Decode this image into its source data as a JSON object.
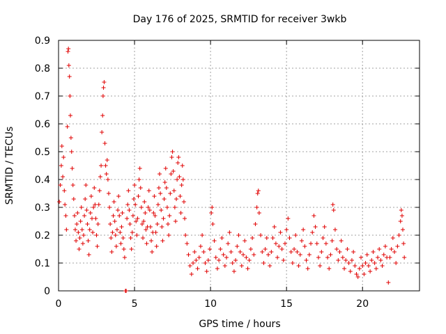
{
  "chart_data": {
    "type": "scatter",
    "title": "Day 176 of 2025, SRMTID for receiver 3wkb",
    "xlabel": "GPS time / hours",
    "ylabel": "SRMTID / TECUs",
    "xlim": [
      0,
      23.75
    ],
    "ylim": [
      0,
      0.9
    ],
    "x_ticks": [
      0,
      5,
      10,
      15,
      20
    ],
    "x_tick_labels": [
      "0",
      "5",
      "10",
      "15",
      "20"
    ],
    "y_ticks": [
      0,
      0.1,
      0.2,
      0.3,
      0.4,
      0.5,
      0.6,
      0.7,
      0.8,
      0.9
    ],
    "y_tick_labels": [
      "0",
      "0.1",
      "0.2",
      "0.3",
      "0.4",
      "0.5",
      "0.6",
      "0.7",
      "0.8",
      "0.9"
    ],
    "grid": true,
    "marker": "+",
    "color": "#e00000",
    "series": [
      {
        "name": "SRMTID",
        "points": [
          [
            0.05,
            0.32
          ],
          [
            0.12,
            0.38
          ],
          [
            0.18,
            0.45
          ],
          [
            0.22,
            0.52
          ],
          [
            0.28,
            0.41
          ],
          [
            0.33,
            0.48
          ],
          [
            0.38,
            0.36
          ],
          [
            0.42,
            0.31
          ],
          [
            0.48,
            0.27
          ],
          [
            0.52,
            0.22
          ],
          [
            0.58,
            0.59
          ],
          [
            0.62,
            0.86
          ],
          [
            0.65,
            0.87
          ],
          [
            0.68,
            0.81
          ],
          [
            0.72,
            0.77
          ],
          [
            0.75,
            0.7
          ],
          [
            0.78,
            0.63
          ],
          [
            0.82,
            0.55
          ],
          [
            0.86,
            0.5
          ],
          [
            0.9,
            0.44
          ],
          [
            0.95,
            0.38
          ],
          [
            1.0,
            0.33
          ],
          [
            1.05,
            0.27
          ],
          [
            1.1,
            0.22
          ],
          [
            1.15,
            0.18
          ],
          [
            1.2,
            0.24
          ],
          [
            1.25,
            0.28
          ],
          [
            1.3,
            0.21
          ],
          [
            1.35,
            0.15
          ],
          [
            1.4,
            0.19
          ],
          [
            1.45,
            0.25
          ],
          [
            1.5,
            0.3
          ],
          [
            1.55,
            0.22
          ],
          [
            1.6,
            0.17
          ],
          [
            1.65,
            0.2
          ],
          [
            1.7,
            0.27
          ],
          [
            1.75,
            0.33
          ],
          [
            1.8,
            0.38
          ],
          [
            1.85,
            0.29
          ],
          [
            1.9,
            0.24
          ],
          [
            1.95,
            0.18
          ],
          [
            2.0,
            0.13
          ],
          [
            2.05,
            0.22
          ],
          [
            2.1,
            0.28
          ],
          [
            2.15,
            0.34
          ],
          [
            2.2,
            0.26
          ],
          [
            2.25,
            0.21
          ],
          [
            2.3,
            0.3
          ],
          [
            2.35,
            0.37
          ],
          [
            2.4,
            0.31
          ],
          [
            2.45,
            0.26
          ],
          [
            2.5,
            0.2
          ],
          [
            2.55,
            0.16
          ],
          [
            2.6,
            0.24
          ],
          [
            2.65,
            0.31
          ],
          [
            2.7,
            0.36
          ],
          [
            2.75,
            0.41
          ],
          [
            2.8,
            0.45
          ],
          [
            2.85,
            0.57
          ],
          [
            2.9,
            0.63
          ],
          [
            2.93,
            0.7
          ],
          [
            2.96,
            0.73
          ],
          [
            3.0,
            0.75
          ],
          [
            3.05,
            0.53
          ],
          [
            3.1,
            0.45
          ],
          [
            3.15,
            0.42
          ],
          [
            3.2,
            0.47
          ],
          [
            3.25,
            0.4
          ],
          [
            3.3,
            0.35
          ],
          [
            3.35,
            0.3
          ],
          [
            3.4,
            0.24
          ],
          [
            3.45,
            0.19
          ],
          [
            3.5,
            0.14
          ],
          [
            3.55,
            0.21
          ],
          [
            3.6,
            0.27
          ],
          [
            3.65,
            0.32
          ],
          [
            3.7,
            0.25
          ],
          [
            3.75,
            0.2
          ],
          [
            3.8,
            0.16
          ],
          [
            3.85,
            0.22
          ],
          [
            3.9,
            0.29
          ],
          [
            3.95,
            0.34
          ],
          [
            4.0,
            0.27
          ],
          [
            4.05,
            0.21
          ],
          [
            4.1,
            0.17
          ],
          [
            4.15,
            0.23
          ],
          [
            4.2,
            0.28
          ],
          [
            4.25,
            0.19
          ],
          [
            4.3,
            0.15
          ],
          [
            4.35,
            0.12
          ],
          [
            4.4,
            0.0
          ],
          [
            4.45,
            0.0
          ],
          [
            4.5,
            0.26
          ],
          [
            4.55,
            0.31
          ],
          [
            4.6,
            0.36
          ],
          [
            4.65,
            0.29
          ],
          [
            4.7,
            0.24
          ],
          [
            4.75,
            0.19
          ],
          [
            4.8,
            0.15
          ],
          [
            4.85,
            0.21
          ],
          [
            4.9,
            0.27
          ],
          [
            4.95,
            0.33
          ],
          [
            5.0,
            0.38
          ],
          [
            5.05,
            0.31
          ],
          [
            5.1,
            0.25
          ],
          [
            5.15,
            0.2
          ],
          [
            5.2,
            0.26
          ],
          [
            5.25,
            0.34
          ],
          [
            5.3,
            0.4
          ],
          [
            5.35,
            0.44
          ],
          [
            5.4,
            0.37
          ],
          [
            5.45,
            0.3
          ],
          [
            5.5,
            0.24
          ],
          [
            5.55,
            0.19
          ],
          [
            5.6,
            0.25
          ],
          [
            5.65,
            0.32
          ],
          [
            5.7,
            0.28
          ],
          [
            5.75,
            0.22
          ],
          [
            5.8,
            0.17
          ],
          [
            5.85,
            0.23
          ],
          [
            5.9,
            0.3
          ],
          [
            5.95,
            0.36
          ],
          [
            6.0,
            0.29
          ],
          [
            6.05,
            0.23
          ],
          [
            6.1,
            0.18
          ],
          [
            6.15,
            0.14
          ],
          [
            6.2,
            0.21
          ],
          [
            6.25,
            0.28
          ],
          [
            6.3,
            0.34
          ],
          [
            6.35,
            0.27
          ],
          [
            6.4,
            0.21
          ],
          [
            6.45,
            0.16
          ],
          [
            6.5,
            0.24
          ],
          [
            6.55,
            0.31
          ],
          [
            6.6,
            0.37
          ],
          [
            6.65,
            0.42
          ],
          [
            6.7,
            0.35
          ],
          [
            6.75,
            0.29
          ],
          [
            6.8,
            0.23
          ],
          [
            6.85,
            0.18
          ],
          [
            6.9,
            0.26
          ],
          [
            6.95,
            0.33
          ],
          [
            7.0,
            0.39
          ],
          [
            7.05,
            0.44
          ],
          [
            7.1,
            0.37
          ],
          [
            7.15,
            0.3
          ],
          [
            7.2,
            0.24
          ],
          [
            7.25,
            0.2
          ],
          [
            7.3,
            0.27
          ],
          [
            7.35,
            0.35
          ],
          [
            7.4,
            0.42
          ],
          [
            7.45,
            0.48
          ],
          [
            7.5,
            0.5
          ],
          [
            7.55,
            0.43
          ],
          [
            7.6,
            0.36
          ],
          [
            7.65,
            0.3
          ],
          [
            7.7,
            0.25
          ],
          [
            7.75,
            0.33
          ],
          [
            7.8,
            0.4
          ],
          [
            7.85,
            0.46
          ],
          [
            7.9,
            0.48
          ],
          [
            7.95,
            0.41
          ],
          [
            8.0,
            0.34
          ],
          [
            8.05,
            0.28
          ],
          [
            8.1,
            0.38
          ],
          [
            8.15,
            0.45
          ],
          [
            8.2,
            0.4
          ],
          [
            8.25,
            0.32
          ],
          [
            8.3,
            0.26
          ],
          [
            8.35,
            0.2
          ],
          [
            8.45,
            0.17
          ],
          [
            8.55,
            0.13
          ],
          [
            8.65,
            0.09
          ],
          [
            8.75,
            0.06
          ],
          [
            8.85,
            0.1
          ],
          [
            8.95,
            0.14
          ],
          [
            9.05,
            0.11
          ],
          [
            9.15,
            0.08
          ],
          [
            9.25,
            0.12
          ],
          [
            9.35,
            0.16
          ],
          [
            9.45,
            0.2
          ],
          [
            9.55,
            0.14
          ],
          [
            9.65,
            0.1
          ],
          [
            9.75,
            0.07
          ],
          [
            9.85,
            0.11
          ],
          [
            9.95,
            0.15
          ],
          [
            10.05,
            0.28
          ],
          [
            10.1,
            0.3
          ],
          [
            10.15,
            0.24
          ],
          [
            10.25,
            0.18
          ],
          [
            10.35,
            0.12
          ],
          [
            10.45,
            0.08
          ],
          [
            10.55,
            0.11
          ],
          [
            10.65,
            0.15
          ],
          [
            10.75,
            0.19
          ],
          [
            10.85,
            0.13
          ],
          [
            10.95,
            0.09
          ],
          [
            11.05,
            0.12
          ],
          [
            11.15,
            0.17
          ],
          [
            11.25,
            0.21
          ],
          [
            11.35,
            0.14
          ],
          [
            11.45,
            0.1
          ],
          [
            11.55,
            0.07
          ],
          [
            11.65,
            0.11
          ],
          [
            11.75,
            0.16
          ],
          [
            11.85,
            0.2
          ],
          [
            11.95,
            0.14
          ],
          [
            12.05,
            0.09
          ],
          [
            12.15,
            0.13
          ],
          [
            12.25,
            0.18
          ],
          [
            12.35,
            0.12
          ],
          [
            12.45,
            0.08
          ],
          [
            12.55,
            0.11
          ],
          [
            12.65,
            0.15
          ],
          [
            12.75,
            0.19
          ],
          [
            12.85,
            0.13
          ],
          [
            12.95,
            0.24
          ],
          [
            13.05,
            0.3
          ],
          [
            13.1,
            0.35
          ],
          [
            13.15,
            0.36
          ],
          [
            13.2,
            0.28
          ],
          [
            13.3,
            0.2
          ],
          [
            13.4,
            0.14
          ],
          [
            13.5,
            0.1
          ],
          [
            13.6,
            0.15
          ],
          [
            13.7,
            0.19
          ],
          [
            13.8,
            0.13
          ],
          [
            13.9,
            0.09
          ],
          [
            14.0,
            0.14
          ],
          [
            14.1,
            0.19
          ],
          [
            14.2,
            0.23
          ],
          [
            14.3,
            0.17
          ],
          [
            14.4,
            0.12
          ],
          [
            14.5,
            0.16
          ],
          [
            14.6,
            0.21
          ],
          [
            14.7,
            0.15
          ],
          [
            14.8,
            0.11
          ],
          [
            14.9,
            0.17
          ],
          [
            15.0,
            0.22
          ],
          [
            15.1,
            0.26
          ],
          [
            15.2,
            0.19
          ],
          [
            15.3,
            0.14
          ],
          [
            15.4,
            0.1
          ],
          [
            15.5,
            0.15
          ],
          [
            15.6,
            0.2
          ],
          [
            15.7,
            0.14
          ],
          [
            15.8,
            0.09
          ],
          [
            15.9,
            0.13
          ],
          [
            16.0,
            0.18
          ],
          [
            16.1,
            0.22
          ],
          [
            16.2,
            0.16
          ],
          [
            16.3,
            0.11
          ],
          [
            16.4,
            0.08
          ],
          [
            16.5,
            0.13
          ],
          [
            16.6,
            0.17
          ],
          [
            16.7,
            0.21
          ],
          [
            16.8,
            0.27
          ],
          [
            16.9,
            0.23
          ],
          [
            17.0,
            0.17
          ],
          [
            17.1,
            0.12
          ],
          [
            17.2,
            0.09
          ],
          [
            17.3,
            0.14
          ],
          [
            17.4,
            0.19
          ],
          [
            17.5,
            0.23
          ],
          [
            17.6,
            0.17
          ],
          [
            17.7,
            0.12
          ],
          [
            17.8,
            0.08
          ],
          [
            17.9,
            0.13
          ],
          [
            18.0,
            0.18
          ],
          [
            18.05,
            0.31
          ],
          [
            18.1,
            0.29
          ],
          [
            18.2,
            0.22
          ],
          [
            18.3,
            0.15
          ],
          [
            18.4,
            0.11
          ],
          [
            18.5,
            0.14
          ],
          [
            18.6,
            0.18
          ],
          [
            18.7,
            0.12
          ],
          [
            18.8,
            0.08
          ],
          [
            18.9,
            0.11
          ],
          [
            19.0,
            0.15
          ],
          [
            19.1,
            0.1
          ],
          [
            19.2,
            0.07
          ],
          [
            19.3,
            0.11
          ],
          [
            19.4,
            0.14
          ],
          [
            19.5,
            0.09
          ],
          [
            19.6,
            0.06
          ],
          [
            19.7,
            0.05
          ],
          [
            19.8,
            0.08
          ],
          [
            19.9,
            0.12
          ],
          [
            20.0,
            0.09
          ],
          [
            20.1,
            0.06
          ],
          [
            20.2,
            0.1
          ],
          [
            20.3,
            0.13
          ],
          [
            20.4,
            0.09
          ],
          [
            20.5,
            0.07
          ],
          [
            20.6,
            0.11
          ],
          [
            20.7,
            0.14
          ],
          [
            20.8,
            0.1
          ],
          [
            20.9,
            0.08
          ],
          [
            21.0,
            0.12
          ],
          [
            21.1,
            0.15
          ],
          [
            21.2,
            0.11
          ],
          [
            21.3,
            0.09
          ],
          [
            21.4,
            0.13
          ],
          [
            21.5,
            0.16
          ],
          [
            21.6,
            0.12
          ],
          [
            21.7,
            0.03
          ],
          [
            21.8,
            0.12
          ],
          [
            21.9,
            0.15
          ],
          [
            22.0,
            0.19
          ],
          [
            22.1,
            0.14
          ],
          [
            22.2,
            0.1
          ],
          [
            22.3,
            0.16
          ],
          [
            22.4,
            0.2
          ],
          [
            22.5,
            0.25
          ],
          [
            22.55,
            0.29
          ],
          [
            22.6,
            0.27
          ],
          [
            22.65,
            0.22
          ],
          [
            22.7,
            0.17
          ],
          [
            22.75,
            0.12
          ]
        ]
      }
    ]
  }
}
